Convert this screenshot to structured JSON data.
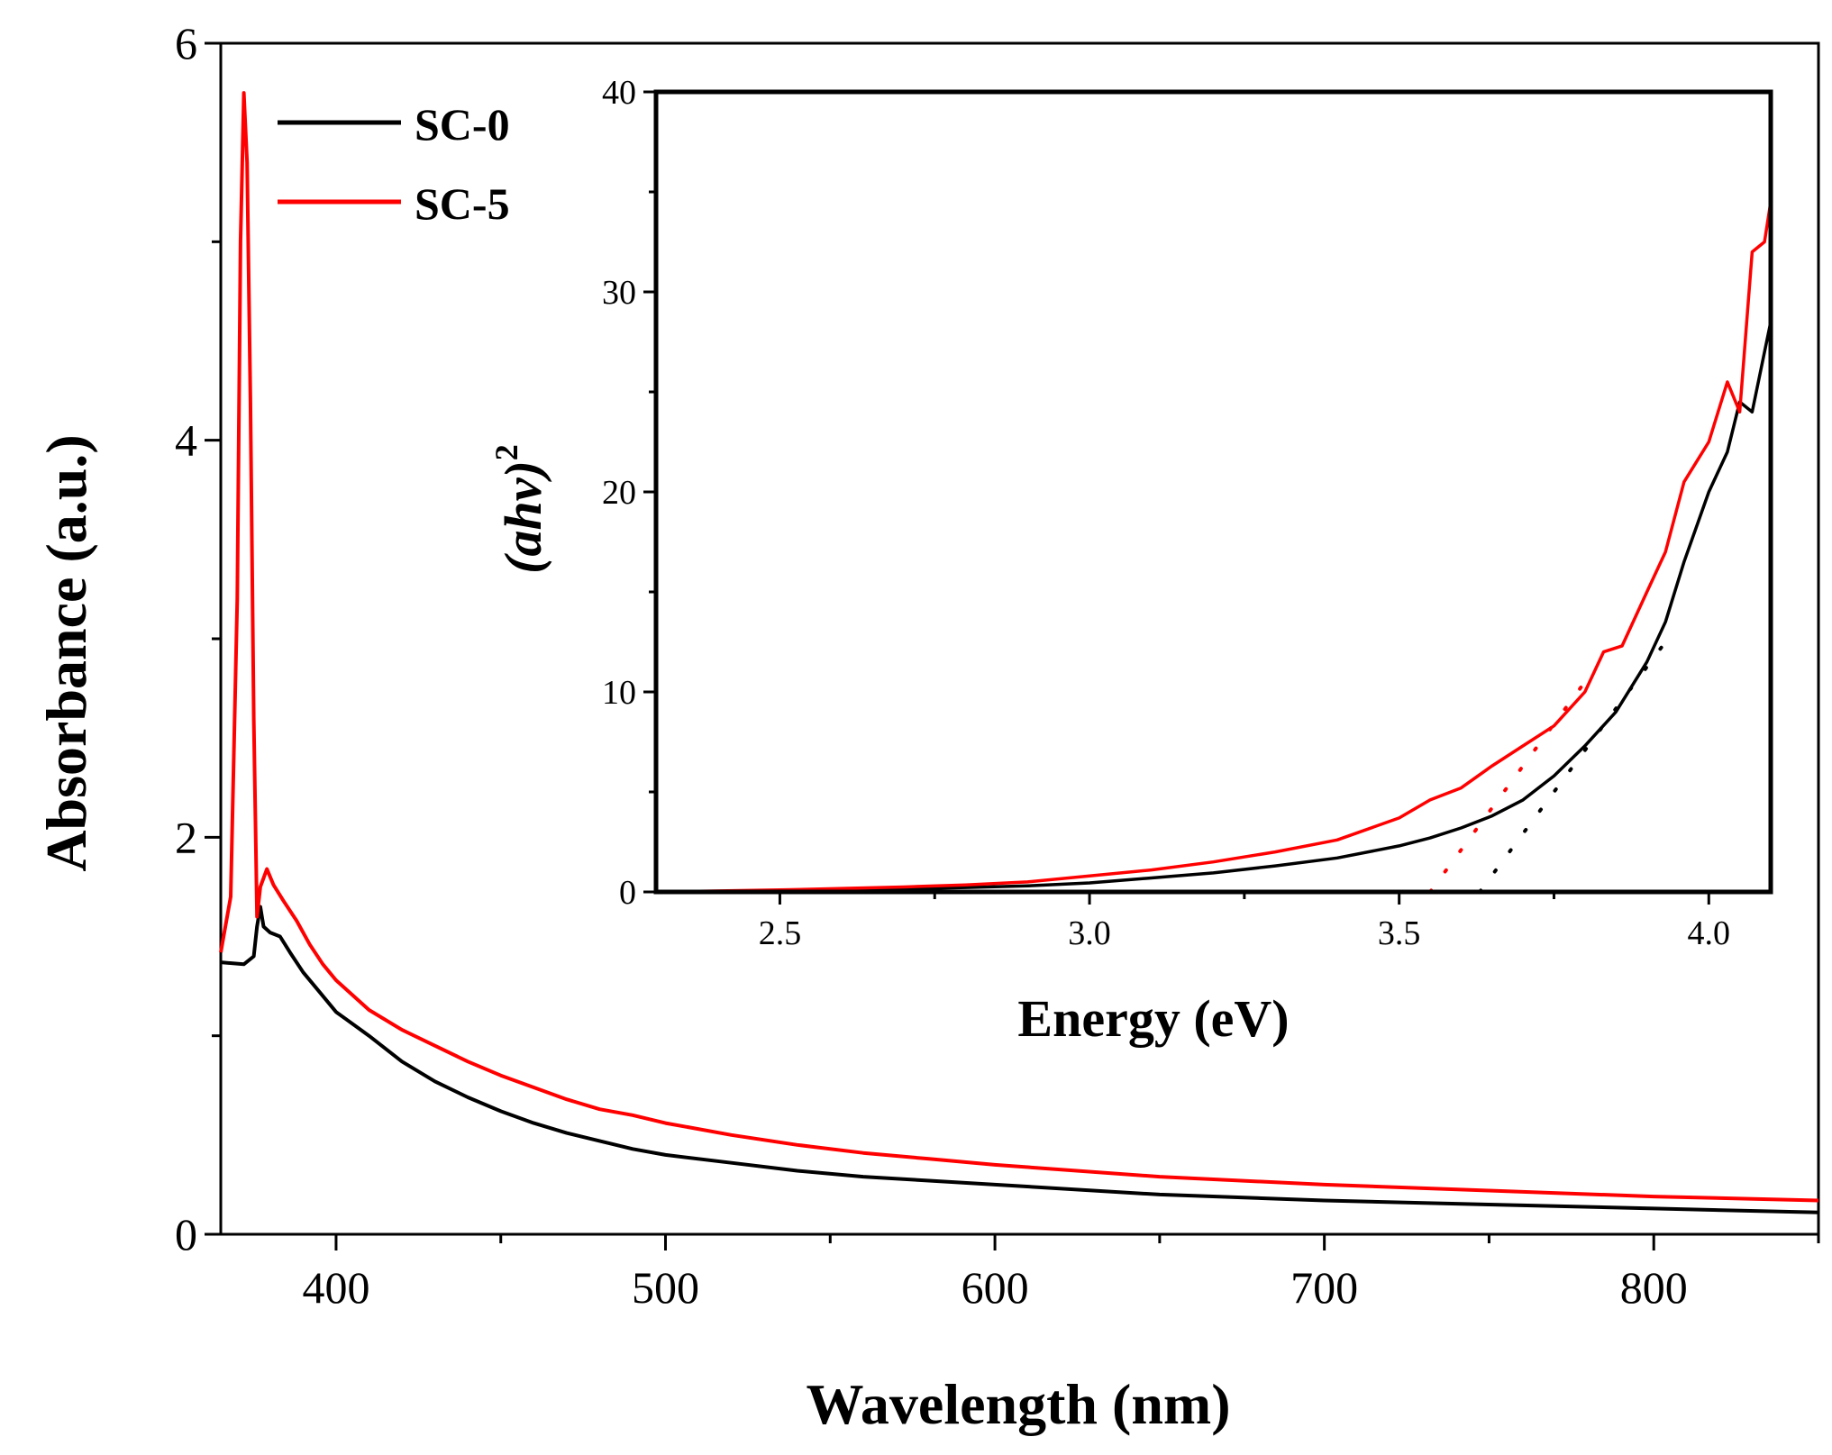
{
  "chart_data": [
    {
      "type": "line",
      "role": "main",
      "xlabel": "Wavelength (nm)",
      "ylabel": "Absorbance (a.u.)",
      "xlim": [
        365,
        850
      ],
      "ylim": [
        0,
        6
      ],
      "xticks": [
        400,
        500,
        600,
        700,
        800
      ],
      "yticks": [
        0,
        2,
        4,
        6
      ],
      "legend": {
        "placement": "top-left",
        "entries": [
          "SC-0",
          "SC-5"
        ]
      },
      "series": [
        {
          "name": "SC-0",
          "color": "#000000",
          "points": [
            [
              365,
              1.37
            ],
            [
              372,
              1.36
            ],
            [
              375,
              1.4
            ],
            [
              376,
              1.55
            ],
            [
              377,
              1.65
            ],
            [
              378,
              1.55
            ],
            [
              380,
              1.52
            ],
            [
              383,
              1.5
            ],
            [
              386,
              1.42
            ],
            [
              390,
              1.32
            ],
            [
              395,
              1.22
            ],
            [
              400,
              1.12
            ],
            [
              410,
              1.0
            ],
            [
              420,
              0.87
            ],
            [
              430,
              0.77
            ],
            [
              440,
              0.69
            ],
            [
              450,
              0.62
            ],
            [
              460,
              0.56
            ],
            [
              470,
              0.51
            ],
            [
              480,
              0.47
            ],
            [
              490,
              0.43
            ],
            [
              500,
              0.4
            ],
            [
              520,
              0.36
            ],
            [
              540,
              0.32
            ],
            [
              560,
              0.29
            ],
            [
              580,
              0.27
            ],
            [
              600,
              0.25
            ],
            [
              650,
              0.2
            ],
            [
              700,
              0.17
            ],
            [
              750,
              0.15
            ],
            [
              800,
              0.13
            ],
            [
              850,
              0.11
            ]
          ]
        },
        {
          "name": "SC-5",
          "color": "#ff0000",
          "points": [
            [
              365,
              1.42
            ],
            [
              368,
              1.7
            ],
            [
              370,
              3.2
            ],
            [
              371,
              5.0
            ],
            [
              372,
              5.75
            ],
            [
              373,
              5.4
            ],
            [
              374,
              4.2
            ],
            [
              375,
              2.6
            ],
            [
              376,
              1.6
            ],
            [
              377,
              1.75
            ],
            [
              379,
              1.84
            ],
            [
              381,
              1.76
            ],
            [
              384,
              1.68
            ],
            [
              388,
              1.58
            ],
            [
              392,
              1.46
            ],
            [
              396,
              1.36
            ],
            [
              400,
              1.28
            ],
            [
              410,
              1.13
            ],
            [
              420,
              1.03
            ],
            [
              430,
              0.95
            ],
            [
              440,
              0.87
            ],
            [
              450,
              0.8
            ],
            [
              460,
              0.74
            ],
            [
              470,
              0.68
            ],
            [
              480,
              0.63
            ],
            [
              490,
              0.6
            ],
            [
              500,
              0.56
            ],
            [
              520,
              0.5
            ],
            [
              540,
              0.45
            ],
            [
              560,
              0.41
            ],
            [
              580,
              0.38
            ],
            [
              600,
              0.35
            ],
            [
              650,
              0.29
            ],
            [
              700,
              0.25
            ],
            [
              750,
              0.22
            ],
            [
              800,
              0.19
            ],
            [
              850,
              0.17
            ]
          ]
        }
      ]
    },
    {
      "type": "line",
      "role": "inset",
      "xlabel": "Energy (eV)",
      "ylabel_text": "(ahv)",
      "ylabel_superscript": "2",
      "xlim": [
        2.3,
        4.1
      ],
      "ylim": [
        0,
        40
      ],
      "xticks": [
        "2.5",
        "3.0",
        "3.5",
        "4.0"
      ],
      "yticks": [
        "0",
        "10",
        "20",
        "30",
        "40"
      ],
      "series": [
        {
          "name": "SC-0",
          "color": "#000000",
          "points": [
            [
              2.3,
              0
            ],
            [
              2.5,
              0.05
            ],
            [
              2.7,
              0.15
            ],
            [
              2.8,
              0.22
            ],
            [
              2.9,
              0.3
            ],
            [
              3.0,
              0.45
            ],
            [
              3.1,
              0.7
            ],
            [
              3.2,
              0.95
            ],
            [
              3.3,
              1.3
            ],
            [
              3.4,
              1.7
            ],
            [
              3.5,
              2.3
            ],
            [
              3.55,
              2.7
            ],
            [
              3.6,
              3.2
            ],
            [
              3.65,
              3.8
            ],
            [
              3.7,
              4.6
            ],
            [
              3.75,
              5.8
            ],
            [
              3.8,
              7.3
            ],
            [
              3.85,
              9.0
            ],
            [
              3.9,
              11.5
            ],
            [
              3.93,
              13.5
            ],
            [
              3.96,
              16.5
            ],
            [
              4.0,
              20.0
            ],
            [
              4.03,
              22.0
            ],
            [
              4.05,
              24.5
            ],
            [
              4.07,
              24.0
            ],
            [
              4.1,
              28.5
            ]
          ]
        },
        {
          "name": "SC-5",
          "color": "#ff0000",
          "points": [
            [
              2.3,
              0
            ],
            [
              2.5,
              0.1
            ],
            [
              2.7,
              0.25
            ],
            [
              2.8,
              0.35
            ],
            [
              2.9,
              0.5
            ],
            [
              3.0,
              0.8
            ],
            [
              3.1,
              1.1
            ],
            [
              3.2,
              1.5
            ],
            [
              3.3,
              2.0
            ],
            [
              3.4,
              2.6
            ],
            [
              3.5,
              3.7
            ],
            [
              3.55,
              4.6
            ],
            [
              3.6,
              5.2
            ],
            [
              3.65,
              6.3
            ],
            [
              3.7,
              7.3
            ],
            [
              3.75,
              8.3
            ],
            [
              3.8,
              10.0
            ],
            [
              3.83,
              12.0
            ],
            [
              3.86,
              12.3
            ],
            [
              3.9,
              15.0
            ],
            [
              3.93,
              17.0
            ],
            [
              3.96,
              20.5
            ],
            [
              4.0,
              22.5
            ],
            [
              4.03,
              25.5
            ],
            [
              4.05,
              24.0
            ],
            [
              4.07,
              32.0
            ],
            [
              4.09,
              32.5
            ],
            [
              4.1,
              34.5
            ]
          ]
        }
      ],
      "tangent_lines": [
        {
          "series": "SC-5",
          "color": "#ff0000",
          "from": [
            3.55,
            0
          ],
          "to": [
            3.8,
            10.5
          ]
        },
        {
          "series": "SC-0",
          "color": "#000000",
          "from": [
            3.63,
            0
          ],
          "to": [
            3.93,
            12.5
          ]
        }
      ]
    }
  ]
}
